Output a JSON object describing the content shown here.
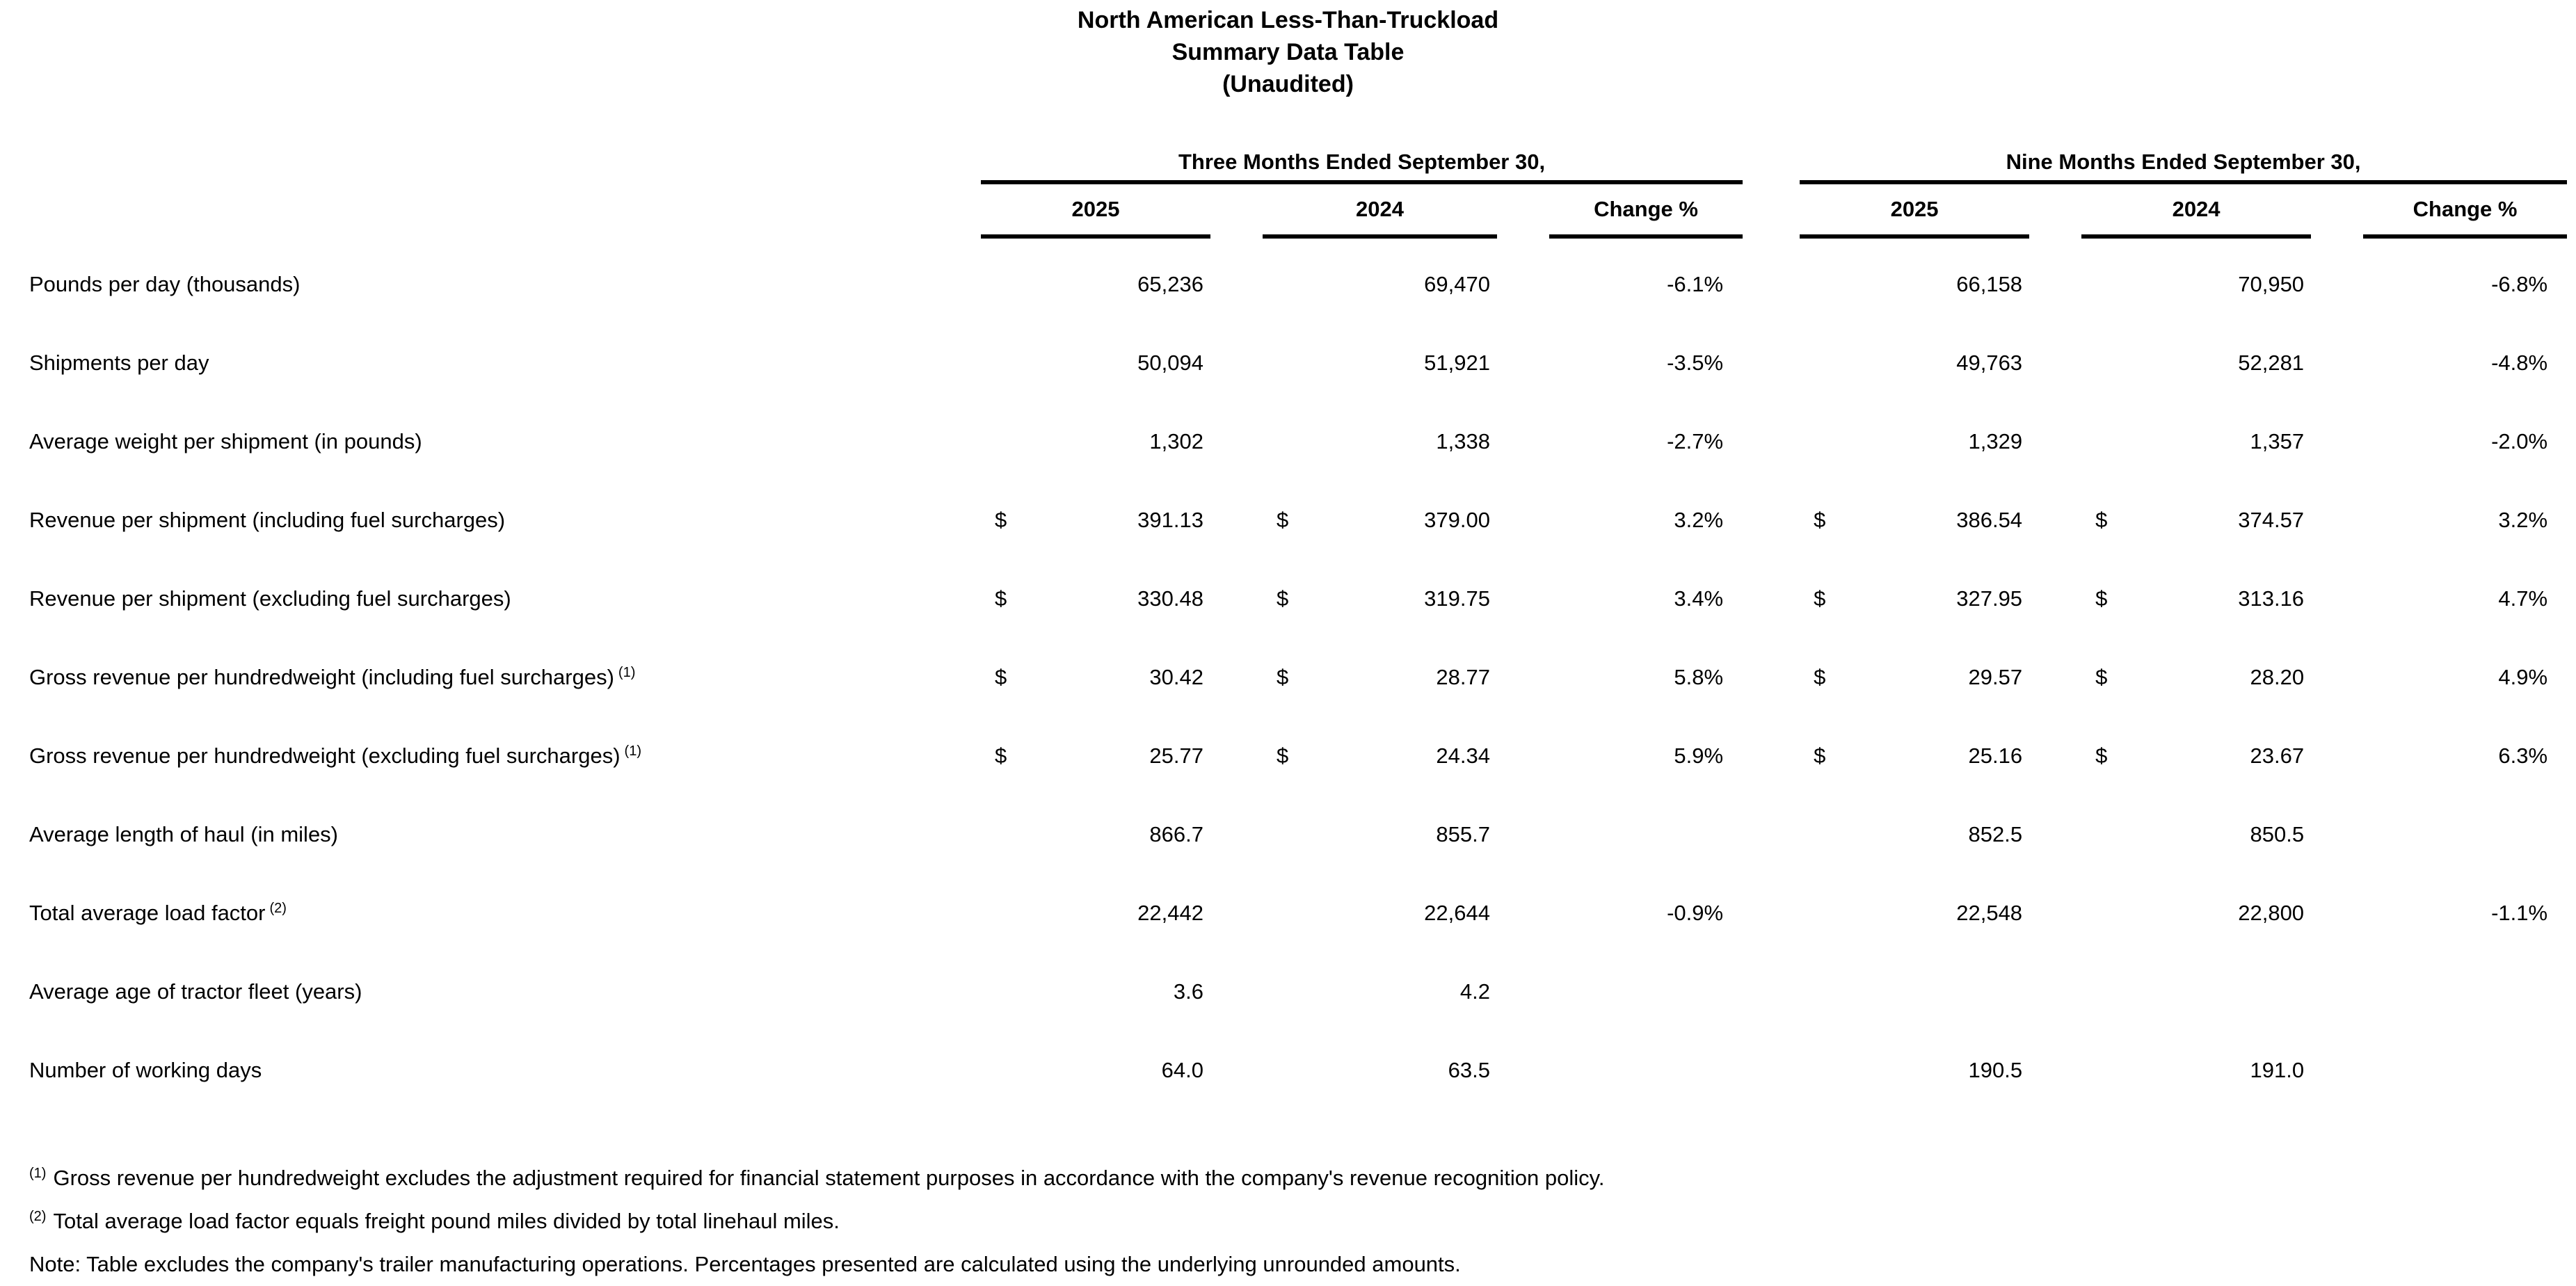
{
  "title": {
    "line1": "North American Less-Than-Truckload",
    "line2": "Summary Data Table",
    "line3": "(Unaudited)"
  },
  "column_groups": [
    {
      "label": "Three Months Ended September 30,",
      "sub_columns": [
        "2025",
        "2024",
        "Change %"
      ]
    },
    {
      "label": "Nine Months Ended September 30,",
      "sub_columns": [
        "2025",
        "2024",
        "Change %"
      ]
    }
  ],
  "rows": [
    {
      "label": "Pounds per day (thousands)",
      "marker": "",
      "tm25d": "",
      "tm25": "65,236",
      "tm24d": "",
      "tm24": "69,470",
      "tmchg": "-6.1%",
      "nm25d": "",
      "nm25": "66,158",
      "nm24d": "",
      "nm24": "70,950",
      "nmchg": "-6.8%"
    },
    {
      "label": "Shipments per day",
      "marker": "",
      "tm25d": "",
      "tm25": "50,094",
      "tm24d": "",
      "tm24": "51,921",
      "tmchg": "-3.5%",
      "nm25d": "",
      "nm25": "49,763",
      "nm24d": "",
      "nm24": "52,281",
      "nmchg": "-4.8%"
    },
    {
      "label": "Average weight per shipment (in pounds)",
      "marker": "",
      "tm25d": "",
      "tm25": "1,302",
      "tm24d": "",
      "tm24": "1,338",
      "tmchg": "-2.7%",
      "nm25d": "",
      "nm25": "1,329",
      "nm24d": "",
      "nm24": "1,357",
      "nmchg": "-2.0%"
    },
    {
      "label": "Revenue per shipment (including fuel surcharges)",
      "marker": "",
      "tm25d": "$",
      "tm25": "391.13",
      "tm24d": "$",
      "tm24": "379.00",
      "tmchg": "3.2%",
      "nm25d": "$",
      "nm25": "386.54",
      "nm24d": "$",
      "nm24": "374.57",
      "nmchg": "3.2%"
    },
    {
      "label": "Revenue per shipment (excluding fuel surcharges)",
      "marker": "",
      "tm25d": "$",
      "tm25": "330.48",
      "tm24d": "$",
      "tm24": "319.75",
      "tmchg": "3.4%",
      "nm25d": "$",
      "nm25": "327.95",
      "nm24d": "$",
      "nm24": "313.16",
      "nmchg": "4.7%"
    },
    {
      "label": "Gross revenue per hundredweight (including fuel surcharges)",
      "marker": "(1)",
      "tm25d": "$",
      "tm25": "30.42",
      "tm24d": "$",
      "tm24": "28.77",
      "tmchg": "5.8%",
      "nm25d": "$",
      "nm25": "29.57",
      "nm24d": "$",
      "nm24": "28.20",
      "nmchg": "4.9%"
    },
    {
      "label": "Gross revenue per hundredweight (excluding fuel surcharges)",
      "marker": "(1)",
      "tm25d": "$",
      "tm25": "25.77",
      "tm24d": "$",
      "tm24": "24.34",
      "tmchg": "5.9%",
      "nm25d": "$",
      "nm25": "25.16",
      "nm24d": "$",
      "nm24": "23.67",
      "nmchg": "6.3%"
    },
    {
      "label": "Average length of haul (in miles)",
      "marker": "",
      "tm25d": "",
      "tm25": "866.7",
      "tm24d": "",
      "tm24": "855.7",
      "tmchg": "",
      "nm25d": "",
      "nm25": "852.5",
      "nm24d": "",
      "nm24": "850.5",
      "nmchg": ""
    },
    {
      "label": "Total average load factor",
      "marker": "(2)",
      "tm25d": "",
      "tm25": "22,442",
      "tm24d": "",
      "tm24": "22,644",
      "tmchg": "-0.9%",
      "nm25d": "",
      "nm25": "22,548",
      "nm24d": "",
      "nm24": "22,800",
      "nmchg": "-1.1%"
    },
    {
      "label": "Average age of tractor fleet (years)",
      "marker": "",
      "tm25d": "",
      "tm25": "3.6",
      "tm24d": "",
      "tm24": "4.2",
      "tmchg": "",
      "nm25d": "",
      "nm25": "",
      "nm24d": "",
      "nm24": "",
      "nmchg": ""
    },
    {
      "label": "Number of working days",
      "marker": "",
      "tm25d": "",
      "tm25": "64.0",
      "tm24d": "",
      "tm24": "63.5",
      "tmchg": "",
      "nm25d": "",
      "nm25": "190.5",
      "nm24d": "",
      "nm24": "191.0",
      "nmchg": ""
    }
  ],
  "footnotes": [
    {
      "marker": "(1)",
      "text": "Gross revenue per hundredweight excludes the adjustment required for financial statement purposes in accordance with the company's revenue recognition policy."
    },
    {
      "marker": "(2)",
      "text": "Total average load factor equals freight pound miles divided by total linehaul miles."
    }
  ],
  "note": "Note: Table excludes the company's trailer manufacturing operations. Percentages presented are calculated using the underlying unrounded amounts."
}
